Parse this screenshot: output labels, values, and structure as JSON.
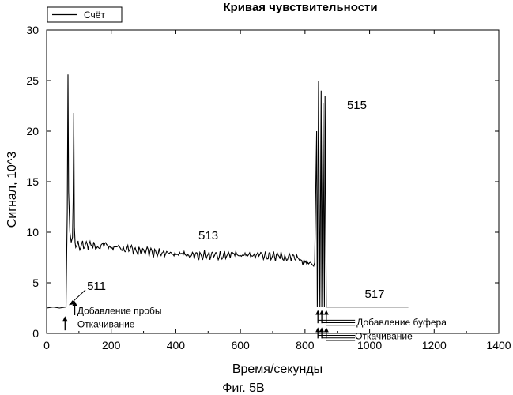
{
  "chart_data": {
    "type": "line",
    "title": "Кривая чувствительности",
    "xlabel": "Время/секунды",
    "ylabel": "Сигнал, 10^3",
    "xlim": [
      0,
      1400
    ],
    "ylim": [
      0,
      30
    ],
    "xticks": [
      "0",
      "200",
      "400",
      "600",
      "800",
      "1000",
      "1200",
      "1400"
    ],
    "yticks": [
      "0",
      "5",
      "10",
      "15",
      "20",
      "25",
      "30"
    ],
    "grid": false,
    "legend": {
      "position": "top-left",
      "entries": [
        "Счёт"
      ]
    },
    "series": [
      {
        "name": "Счёт",
        "color": "#000000",
        "x": [
          0,
          20,
          40,
          60,
          64,
          66,
          68,
          72,
          76,
          80,
          82,
          84,
          86,
          88,
          90,
          95,
          100,
          120,
          140,
          160,
          180,
          200,
          220,
          240,
          260,
          280,
          300,
          320,
          340,
          360,
          380,
          400,
          420,
          440,
          460,
          480,
          500,
          520,
          540,
          560,
          580,
          600,
          620,
          640,
          660,
          680,
          700,
          720,
          740,
          760,
          780,
          790,
          800,
          820,
          830,
          836,
          838,
          842,
          846,
          850,
          852,
          856,
          860,
          862,
          866,
          870,
          872,
          876,
          880,
          900,
          950,
          1000,
          1050,
          1100,
          1120
        ],
        "y": [
          2.5,
          2.6,
          2.5,
          2.6,
          12.0,
          25.6,
          14.0,
          10.0,
          9.0,
          9.5,
          13.0,
          21.8,
          10.5,
          9.0,
          8.5,
          8.8,
          8.6,
          8.8,
          8.7,
          8.5,
          8.9,
          8.4,
          8.6,
          8.2,
          8.5,
          8.0,
          8.3,
          8.1,
          7.9,
          8.0,
          7.9,
          7.8,
          7.9,
          7.7,
          7.8,
          7.6,
          7.8,
          7.7,
          7.6,
          7.8,
          7.9,
          7.7,
          7.8,
          7.7,
          7.8,
          7.6,
          7.7,
          7.6,
          7.5,
          7.6,
          7.4,
          7.2,
          7.0,
          6.9,
          7.0,
          20.0,
          2.6,
          25.0,
          2.6,
          24.0,
          2.6,
          22.8,
          2.6,
          23.5,
          2.6,
          2.6,
          2.6,
          2.6,
          2.6,
          2.6,
          2.6,
          2.6,
          2.6,
          2.6,
          2.6
        ]
      }
    ],
    "annotations": [
      {
        "text": "511",
        "x": 125,
        "y": 4.3
      },
      {
        "text": "513",
        "x": 470,
        "y": 9.3
      },
      {
        "text": "515",
        "x": 930,
        "y": 22.2
      },
      {
        "text": "517",
        "x": 985,
        "y": 3.5
      },
      {
        "text": "Добавление пробы",
        "x": 95,
        "y": 1.9
      },
      {
        "text": "Откачивание",
        "x": 95,
        "y": 0.6
      },
      {
        "text": "Добавление буфера",
        "x": 960,
        "y": 0.8
      },
      {
        "text": "Откачивание",
        "x": 955,
        "y": -0.6
      }
    ],
    "caption": "Фиг. 5В"
  }
}
